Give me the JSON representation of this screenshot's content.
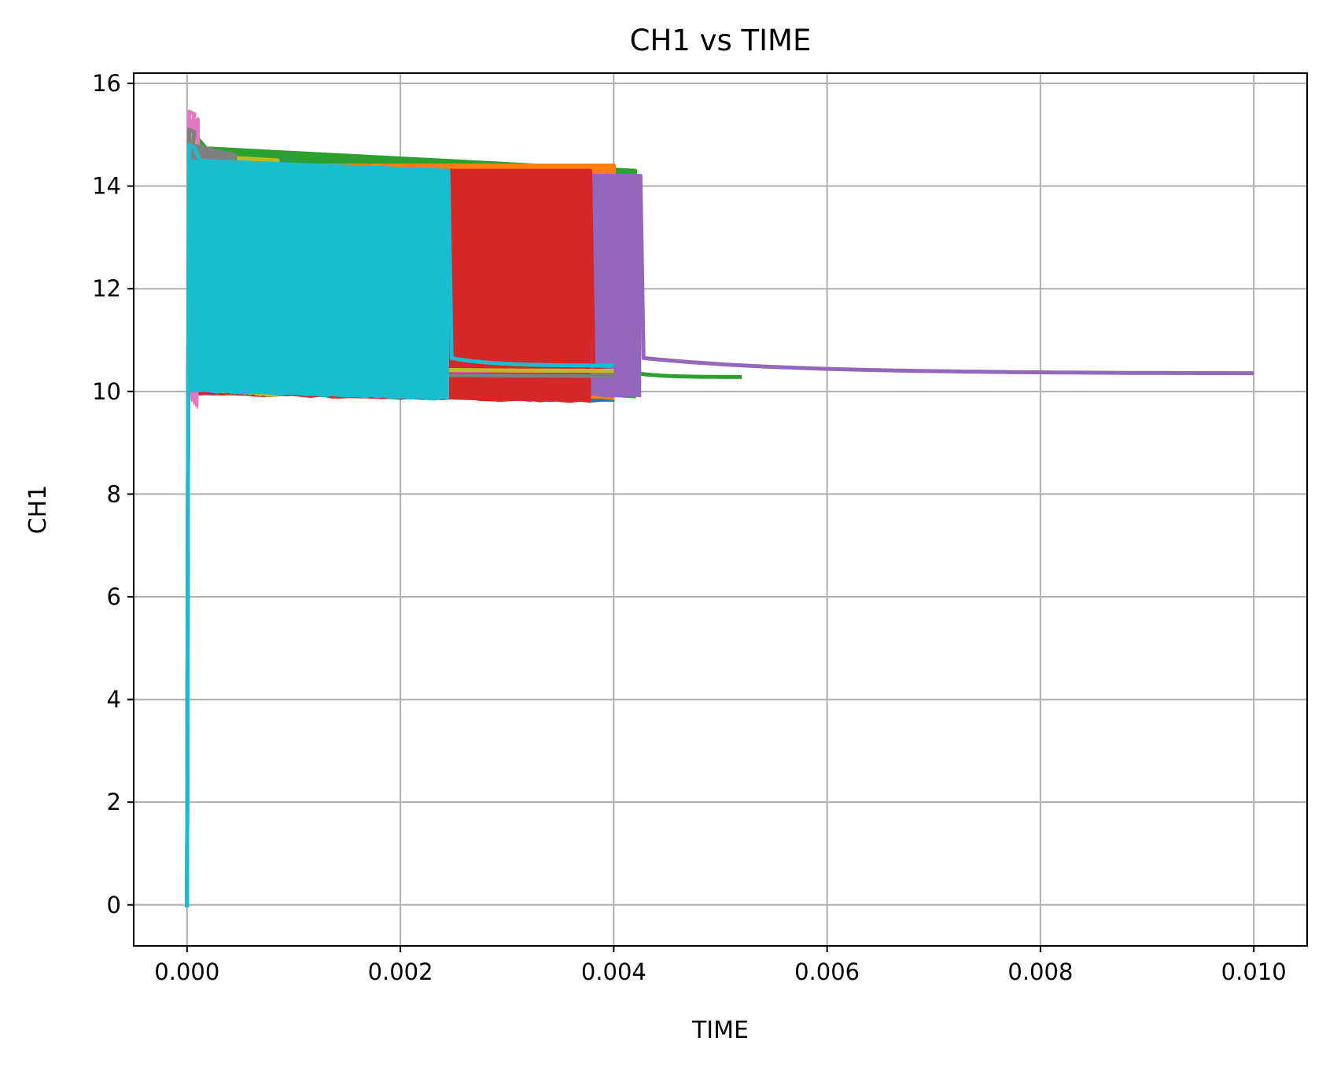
{
  "chart_data": {
    "type": "line",
    "title": "CH1 vs TIME",
    "xlabel": "TIME",
    "ylabel": "CH1",
    "xlim": [
      -0.0005,
      0.0105
    ],
    "ylim": [
      -0.8,
      16.2
    ],
    "xticks": [
      {
        "value": 0.0,
        "label": "0.000"
      },
      {
        "value": 0.002,
        "label": "0.002"
      },
      {
        "value": 0.004,
        "label": "0.004"
      },
      {
        "value": 0.006,
        "label": "0.006"
      },
      {
        "value": 0.008,
        "label": "0.008"
      },
      {
        "value": 0.01,
        "label": "0.010"
      }
    ],
    "yticks": [
      {
        "value": 0,
        "label": "0"
      },
      {
        "value": 2,
        "label": "2"
      },
      {
        "value": 4,
        "label": "4"
      },
      {
        "value": 6,
        "label": "6"
      },
      {
        "value": 8,
        "label": "8"
      },
      {
        "value": 10,
        "label": "10"
      },
      {
        "value": 12,
        "label": "12"
      },
      {
        "value": 14,
        "label": "14"
      },
      {
        "value": 16,
        "label": "16"
      }
    ],
    "grid": true,
    "legend": "none",
    "series": [
      {
        "color": "#1f77b4",
        "t_end": 0.004,
        "burst_end": 0.004,
        "peak": 14.6,
        "burst_top": 14.4,
        "burst_bottom": 9.8,
        "tail_start": 10.6,
        "tail_end": 10.3
      },
      {
        "color": "#2ca02c",
        "t_end": 0.0052,
        "burst_end": 0.0042,
        "peak": 15.05,
        "burst_top": 14.3,
        "burst_bottom": 9.9,
        "tail_start": 10.35,
        "tail_end": 10.28
      },
      {
        "color": "#ff7f0e",
        "t_end": 0.004,
        "burst_end": 0.004,
        "peak": 14.7,
        "burst_top": 14.4,
        "burst_bottom": 9.85,
        "tail_start": 10.5,
        "tail_end": 10.4
      },
      {
        "color": "#9467bd",
        "t_end": 0.01,
        "burst_end": 0.00425,
        "peak": 14.5,
        "burst_top": 14.2,
        "burst_bottom": 9.9,
        "tail_start": 10.65,
        "tail_end": 10.35
      },
      {
        "color": "#d62728",
        "t_end": 0.004,
        "burst_end": 0.00378,
        "peak": 14.6,
        "burst_top": 14.3,
        "burst_bottom": 9.8,
        "tail_start": 10.5,
        "tail_end": 10.4
      },
      {
        "color": "#e377c2",
        "t_end": 0.004,
        "burst_end": 0.0001,
        "peak": 15.45,
        "burst_top": 15.3,
        "burst_bottom": 9.7,
        "tail_start": 10.5,
        "tail_end": 10.4
      },
      {
        "color": "#bcbd22",
        "t_end": 0.004,
        "burst_end": 0.00085,
        "peak": 14.9,
        "burst_top": 14.5,
        "burst_bottom": 9.9,
        "tail_start": 10.55,
        "tail_end": 10.4
      },
      {
        "color": "#7f7f7f",
        "t_end": 0.004,
        "burst_end": 0.00045,
        "peak": 15.1,
        "burst_top": 14.6,
        "burst_bottom": 9.95,
        "tail_start": 10.45,
        "tail_end": 10.3
      },
      {
        "color": "#17becf",
        "t_end": 0.004,
        "burst_end": 0.00245,
        "peak": 14.8,
        "burst_top": 14.3,
        "burst_bottom": 9.85,
        "tail_start": 10.65,
        "tail_end": 10.5
      }
    ]
  }
}
